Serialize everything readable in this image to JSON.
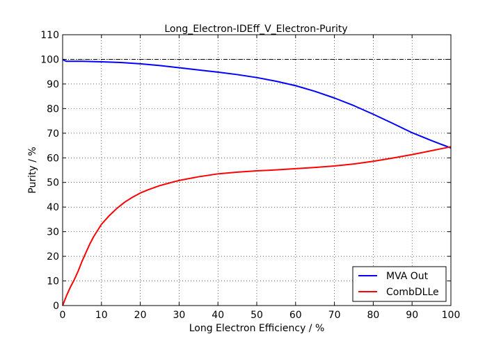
{
  "chart_data": {
    "type": "line",
    "title": "Long_Electron-IDEff_V_Electron-Purity",
    "xlabel": "Long Electron Efficiency / %",
    "ylabel": "Purity / %",
    "xlim": [
      0,
      100
    ],
    "ylim": [
      0,
      110
    ],
    "xticks": [
      0,
      10,
      20,
      30,
      40,
      50,
      60,
      70,
      80,
      90,
      100
    ],
    "yticks": [
      0,
      10,
      20,
      30,
      40,
      50,
      60,
      70,
      80,
      90,
      100,
      110
    ],
    "grid": true,
    "legend_position": "lower-right",
    "reference_line": {
      "y": 100,
      "style": "dash-dot",
      "color": "#000000"
    },
    "series": [
      {
        "name": "MVA Out",
        "color": "#0000ff",
        "x": [
          0,
          0.5,
          1,
          2,
          5,
          10,
          15,
          20,
          25,
          30,
          35,
          40,
          45,
          50,
          55,
          60,
          65,
          70,
          75,
          80,
          85,
          90,
          95,
          100
        ],
        "y": [
          100,
          99.5,
          99.2,
          99.2,
          99.2,
          99,
          98.7,
          98.2,
          97.5,
          96.6,
          95.7,
          94.8,
          93.8,
          92.6,
          91.1,
          89.3,
          87,
          84.3,
          81.2,
          77.7,
          74,
          70.2,
          67,
          64
        ]
      },
      {
        "name": "CombDLLe",
        "color": "#ff0000",
        "x": [
          0,
          0.5,
          1,
          2,
          3,
          4,
          5,
          6,
          7,
          8,
          9,
          10,
          12,
          14,
          16,
          18,
          20,
          22,
          25,
          28,
          30,
          35,
          40,
          45,
          50,
          55,
          60,
          65,
          70,
          75,
          80,
          85,
          90,
          95,
          100
        ],
        "y": [
          0,
          2,
          4,
          7.5,
          10.5,
          14,
          18,
          21.5,
          25,
          28,
          30.5,
          33,
          36.5,
          39.5,
          42,
          44,
          45.7,
          47,
          48.7,
          50,
          50.8,
          52.3,
          53.5,
          54.2,
          54.7,
          55.1,
          55.6,
          56.1,
          56.7,
          57.5,
          58.6,
          59.9,
          61.3,
          62.9,
          64.5
        ]
      }
    ]
  }
}
